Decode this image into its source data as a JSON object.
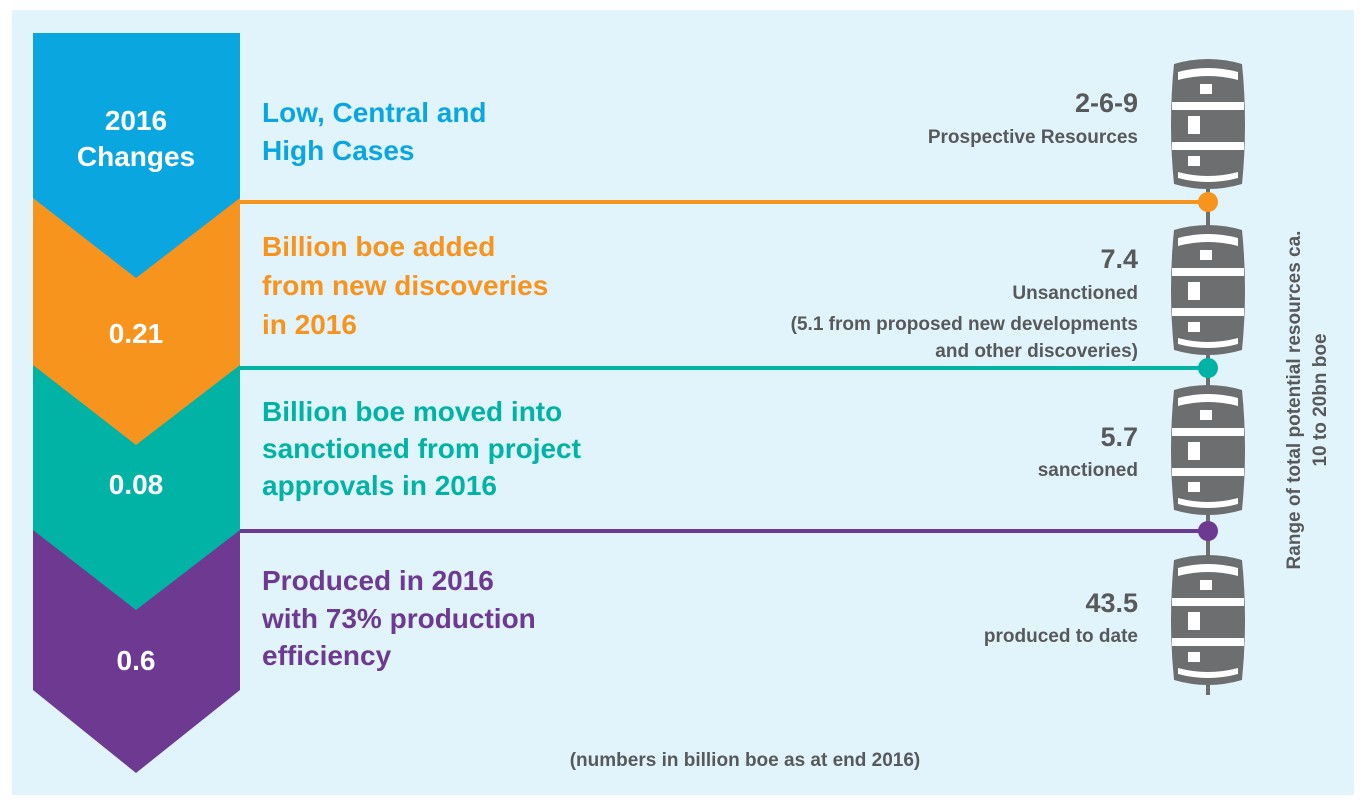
{
  "header": {
    "title_lines": [
      "2016",
      "Changes"
    ]
  },
  "rows": [
    {
      "description_lines": [
        "Low, Central and",
        "High Cases"
      ],
      "resource_value": "2-6-9",
      "resource_label_lines": [
        "Prospective Resources"
      ]
    },
    {
      "change_value": 0.21,
      "description_lines": [
        "Billion boe added",
        "from new discoveries",
        "in 2016"
      ],
      "resource_value": 7.4,
      "resource_label_lines": [
        "Unsanctioned"
      ],
      "resource_note_lines": [
        "(5.1 from proposed new developments",
        "and other discoveries)"
      ]
    },
    {
      "change_value": 0.08,
      "description_lines": [
        "Billion boe moved into",
        "sanctioned from project",
        "approvals in 2016"
      ],
      "resource_value": 5.7,
      "resource_label_lines": [
        "sanctioned"
      ]
    },
    {
      "change_value": 0.6,
      "description_lines": [
        "Produced in 2016",
        "with 73% production",
        "efficiency"
      ],
      "resource_value": 43.5,
      "resource_label_lines": [
        "produced to date"
      ]
    }
  ],
  "side_note_lines": [
    "Range of total potential resources ca.",
    "10 to 20bn boe"
  ],
  "footer": "(numbers in billion boe as at end 2016)"
}
